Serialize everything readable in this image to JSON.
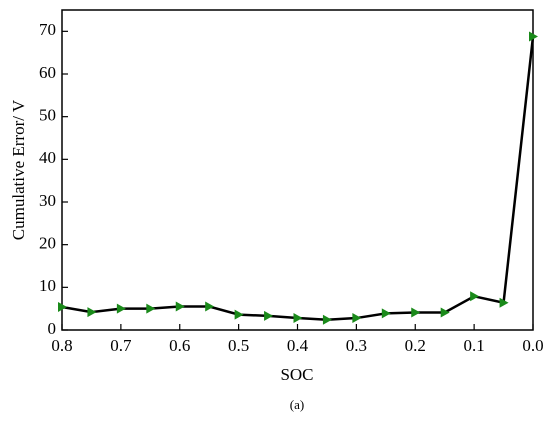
{
  "chart_data": {
    "type": "line",
    "caption": "(a)",
    "xlabel": "SOC",
    "ylabel": "Cumulative Error/ V",
    "x": [
      0.8,
      0.75,
      0.7,
      0.65,
      0.6,
      0.55,
      0.5,
      0.45,
      0.4,
      0.35,
      0.3,
      0.25,
      0.2,
      0.15,
      0.1,
      0.05,
      0.0
    ],
    "series": [
      {
        "color": "#000000",
        "marker_color": "#1a8a1a",
        "values": [
          5.4,
          4.2,
          5.0,
          5.0,
          5.5,
          5.5,
          3.6,
          3.3,
          2.8,
          2.4,
          2.8,
          3.9,
          4.1,
          4.1,
          7.9,
          6.4,
          68.8
        ]
      }
    ],
    "xlim": [
      0.8,
      0.0
    ],
    "xticks": [
      0.8,
      0.7,
      0.6,
      0.5,
      0.4,
      0.3,
      0.2,
      0.1,
      {
        "value": 0,
        "label": "0.0"
      }
    ],
    "ylim": [
      0,
      75
    ],
    "yticks": [
      0,
      10,
      20,
      30,
      40,
      50,
      60,
      70
    ]
  }
}
